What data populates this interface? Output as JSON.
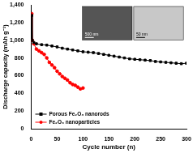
{
  "chart_data": {
    "type": "line",
    "x_label": "Cycle number (n)",
    "y_label": "Discharge capacity (mAh g⁻¹)",
    "xlim": [
      0,
      300
    ],
    "xticks": [
      0,
      50,
      100,
      150,
      200,
      250,
      300
    ],
    "ylim": [
      0,
      1400
    ],
    "yticks": [
      0,
      200,
      400,
      600,
      800,
      1000,
      1200,
      1400
    ],
    "legend": "lower left",
    "series": [
      {
        "name": "Porous Fe₂O₃ nanorods",
        "color": "#000000",
        "marker": "square",
        "x": [
          1,
          2,
          5,
          10,
          20,
          30,
          40,
          50,
          60,
          70,
          80,
          90,
          100,
          110,
          120,
          130,
          140,
          150,
          160,
          170,
          180,
          190,
          200,
          210,
          220,
          230,
          240,
          250,
          260,
          270,
          280,
          290,
          300
        ],
        "values": [
          1280,
          1000,
          975,
          960,
          950,
          945,
          935,
          925,
          910,
          900,
          890,
          880,
          870,
          865,
          860,
          850,
          840,
          830,
          820,
          810,
          800,
          790,
          785,
          780,
          775,
          770,
          760,
          755,
          750,
          745,
          740,
          735,
          740
        ]
      },
      {
        "name": "Fe₂O₃ nanoparticles",
        "color": "#ff0000",
        "marker": "circle",
        "x": [
          1,
          2,
          5,
          10,
          15,
          20,
          25,
          30,
          35,
          40,
          45,
          50,
          55,
          60,
          65,
          70,
          75,
          80,
          85,
          90,
          95,
          100
        ],
        "values": [
          1300,
          1000,
          960,
          900,
          880,
          860,
          840,
          800,
          750,
          720,
          690,
          650,
          620,
          590,
          570,
          550,
          520,
          500,
          490,
          470,
          450,
          460
        ]
      }
    ],
    "insets": [
      {
        "scale_bar": "500 nm"
      },
      {
        "scale_bar": "50 nm"
      }
    ]
  }
}
